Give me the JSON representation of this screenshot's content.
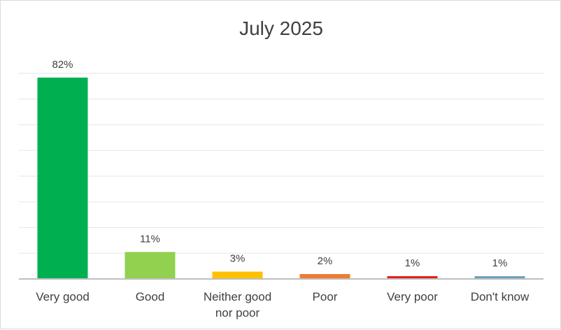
{
  "chart_data": {
    "type": "bar",
    "title": "July 2025",
    "xlabel": "",
    "ylabel": "",
    "categories": [
      [
        "Very good"
      ],
      [
        "Good"
      ],
      [
        "Neither good",
        "nor poor"
      ],
      [
        "Poor"
      ],
      [
        "Very poor"
      ],
      [
        "Don't know"
      ]
    ],
    "values": [
      82,
      11,
      3,
      2,
      1,
      1
    ],
    "data_labels": [
      "82%",
      "11%",
      "3%",
      "2%",
      "1%",
      "1%"
    ],
    "colors": [
      "#00b050",
      "#92d050",
      "#ffc000",
      "#ed7d31",
      "#e01f1f",
      "#6fa0c0"
    ],
    "ylim": [
      0,
      82
    ],
    "grid": true,
    "legend": "none"
  }
}
